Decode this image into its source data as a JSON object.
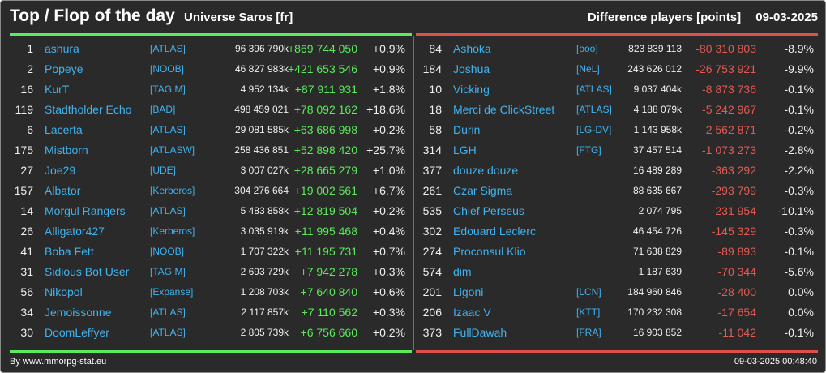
{
  "header": {
    "title": "Top / Flop of the day",
    "universe": "Universe Saros [fr]",
    "metric": "Difference players [points]",
    "date": "09-03-2025"
  },
  "colors": {
    "background": "#2a2a2a",
    "top_accent": "#5bea5b",
    "flop_accent": "#e55a52",
    "link": "#3fb3f0",
    "text": "#f0f0f0"
  },
  "top": [
    {
      "rank": "1",
      "name": "ashura",
      "ally": "[ATLAS]",
      "points": "96 396 790k",
      "diff": "+869 744 050",
      "pct": "+0.9%"
    },
    {
      "rank": "2",
      "name": "Popeye",
      "ally": "[NOOB]",
      "points": "46 827 983k",
      "diff": "+421 653 546",
      "pct": "+0.9%"
    },
    {
      "rank": "16",
      "name": "KurT",
      "ally": "[TAG M]",
      "points": "4 952 134k",
      "diff": "+87 911 931",
      "pct": "+1.8%"
    },
    {
      "rank": "119",
      "name": "Stadtholder Echo",
      "ally": "[BAD]",
      "points": "498 459 021",
      "diff": "+78 092 162",
      "pct": "+18.6%"
    },
    {
      "rank": "6",
      "name": "Lacerta",
      "ally": "[ATLAS]",
      "points": "29 081 585k",
      "diff": "+63 686 998",
      "pct": "+0.2%"
    },
    {
      "rank": "175",
      "name": "Mistborn",
      "ally": "[ATLASW]",
      "points": "258 436 851",
      "diff": "+52 898 420",
      "pct": "+25.7%"
    },
    {
      "rank": "27",
      "name": "Joe29",
      "ally": "[UDE]",
      "points": "3 007 027k",
      "diff": "+28 665 279",
      "pct": "+1.0%"
    },
    {
      "rank": "157",
      "name": "Albator",
      "ally": "[Kerberos]",
      "points": "304 276 664",
      "diff": "+19 002 561",
      "pct": "+6.7%"
    },
    {
      "rank": "14",
      "name": "Morgul Rangers",
      "ally": "[ATLAS]",
      "points": "5 483 858k",
      "diff": "+12 819 504",
      "pct": "+0.2%"
    },
    {
      "rank": "26",
      "name": "Alligator427",
      "ally": "[Kerberos]",
      "points": "3 035 919k",
      "diff": "+11 995 468",
      "pct": "+0.4%"
    },
    {
      "rank": "41",
      "name": "Boba Fett",
      "ally": "[NOOB]",
      "points": "1 707 322k",
      "diff": "+11 195 731",
      "pct": "+0.7%"
    },
    {
      "rank": "31",
      "name": "Sidious Bot User",
      "ally": "[TAG M]",
      "points": "2 693 729k",
      "diff": "+7 942 278",
      "pct": "+0.3%"
    },
    {
      "rank": "56",
      "name": "Nikopol",
      "ally": "[Expanse]",
      "points": "1 208 703k",
      "diff": "+7 640 840",
      "pct": "+0.6%"
    },
    {
      "rank": "34",
      "name": "Jemoissonne",
      "ally": "[ATLAS]",
      "points": "2 117 857k",
      "diff": "+7 110 562",
      "pct": "+0.3%"
    },
    {
      "rank": "30",
      "name": "DoomLeffyer",
      "ally": "[ATLAS]",
      "points": "2 805 739k",
      "diff": "+6 756 660",
      "pct": "+0.2%"
    }
  ],
  "flop": [
    {
      "rank": "84",
      "name": "Ashoka",
      "ally": "[ooo]",
      "points": "823 839 113",
      "diff": "-80 310 803",
      "pct": "-8.9%"
    },
    {
      "rank": "184",
      "name": "Joshua",
      "ally": "[NeL]",
      "points": "243 626 012",
      "diff": "-26 753 921",
      "pct": "-9.9%"
    },
    {
      "rank": "10",
      "name": "Vicking",
      "ally": "[ATLAS]",
      "points": "9 037 404k",
      "diff": "-8 873 736",
      "pct": "-0.1%"
    },
    {
      "rank": "18",
      "name": "Merci de ClickStreet",
      "ally": "[ATLAS]",
      "points": "4 188 079k",
      "diff": "-5 242 967",
      "pct": "-0.1%"
    },
    {
      "rank": "58",
      "name": "Durin",
      "ally": "[LG-DV]",
      "points": "1 143 958k",
      "diff": "-2 562 871",
      "pct": "-0.2%"
    },
    {
      "rank": "314",
      "name": "LGH",
      "ally": "[FTG]",
      "points": "37 457 514",
      "diff": "-1 073 273",
      "pct": "-2.8%"
    },
    {
      "rank": "377",
      "name": "douze douze",
      "ally": "",
      "points": "16 489 289",
      "diff": "-363 292",
      "pct": "-2.2%"
    },
    {
      "rank": "261",
      "name": "Czar Sigma",
      "ally": "",
      "points": "88 635 667",
      "diff": "-293 799",
      "pct": "-0.3%"
    },
    {
      "rank": "535",
      "name": "Chief Perseus",
      "ally": "",
      "points": "2 074 795",
      "diff": "-231 954",
      "pct": "-10.1%"
    },
    {
      "rank": "302",
      "name": "Edouard Leclerc",
      "ally": "",
      "points": "46 454 726",
      "diff": "-145 329",
      "pct": "-0.3%"
    },
    {
      "rank": "274",
      "name": "Proconsul Klio",
      "ally": "",
      "points": "71 638 829",
      "diff": "-89 893",
      "pct": "-0.1%"
    },
    {
      "rank": "574",
      "name": "dim",
      "ally": "",
      "points": "1 187 639",
      "diff": "-70 344",
      "pct": "-5.6%"
    },
    {
      "rank": "201",
      "name": "Ligoni",
      "ally": "[LCN]",
      "points": "184 960 846",
      "diff": "-28 400",
      "pct": "0.0%"
    },
    {
      "rank": "206",
      "name": "Izaac V",
      "ally": "[KTT]",
      "points": "170 232 308",
      "diff": "-17 654",
      "pct": "0.0%"
    },
    {
      "rank": "373",
      "name": "FullDawah",
      "ally": "[FRA]",
      "points": "16 903 852",
      "diff": "-11 042",
      "pct": "-0.1%"
    }
  ],
  "footer": {
    "source": "By www.mmorpg-stat.eu",
    "timestamp": "09-03-2025 00:48:40"
  }
}
